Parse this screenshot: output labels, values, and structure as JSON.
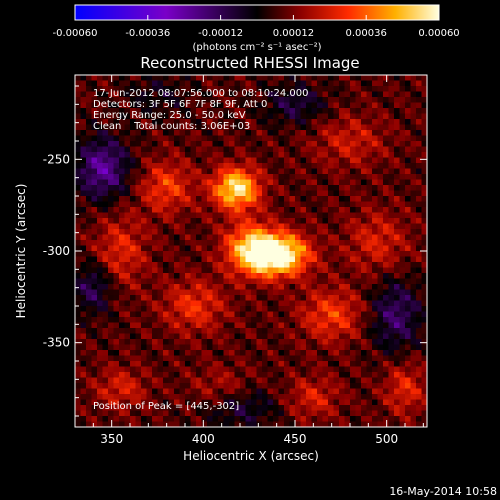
{
  "chart_data": {
    "type": "heatmap",
    "title": "Reconstructed RHESSI Image",
    "xlabel": "Heliocentric X (arcsec)",
    "ylabel": "Heliocentric Y (arcsec)",
    "x_ticks": [
      350,
      400,
      450,
      500
    ],
    "y_ticks": [
      -250,
      -300,
      -350
    ],
    "xlim": [
      330,
      522
    ],
    "ylim": [
      -396,
      -204
    ],
    "colorbar": {
      "ticks": [
        "-0.00060",
        "-0.00036",
        "-0.00012",
        "0.00012",
        "0.00036",
        "0.00060"
      ],
      "range": [
        -0.0006,
        0.0006
      ],
      "unit_label": "(photons cm⁻² s⁻¹ asec⁻²)"
    },
    "info_lines": [
      "17-Jun-2012 08:07:56.000 to 08:10:24.000",
      "Detectors: 3F 5F 6F 7F 8F 9F, Att 0",
      "Energy Range: 25.0 - 50.0 keV",
      "Clean    Total counts: 3.06E+03"
    ],
    "peak_label": "Position of Peak = [445,-302]",
    "peak": {
      "x": 445,
      "y": -302
    },
    "blobs": [
      {
        "x": 418,
        "y": -266,
        "amp": 0.00048,
        "sx": 9,
        "sy": 8
      },
      {
        "x": 440,
        "y": -302,
        "amp": 0.0006,
        "sx": 12,
        "sy": 8
      },
      {
        "x": 425,
        "y": -298,
        "amp": 0.0003,
        "sx": 10,
        "sy": 10
      },
      {
        "x": 380,
        "y": -265,
        "amp": 0.00022,
        "sx": 10,
        "sy": 10
      },
      {
        "x": 395,
        "y": -330,
        "amp": 0.0002,
        "sx": 12,
        "sy": 10
      },
      {
        "x": 470,
        "y": -335,
        "amp": 0.00022,
        "sx": 12,
        "sy": 10
      },
      {
        "x": 355,
        "y": -300,
        "amp": 0.00018,
        "sx": 10,
        "sy": 14
      },
      {
        "x": 495,
        "y": -295,
        "amp": 0.00016,
        "sx": 12,
        "sy": 12
      },
      {
        "x": 480,
        "y": -240,
        "amp": 0.00014,
        "sx": 14,
        "sy": 10
      },
      {
        "x": 355,
        "y": -375,
        "amp": 0.00016,
        "sx": 10,
        "sy": 8
      },
      {
        "x": 460,
        "y": -380,
        "amp": 0.00016,
        "sx": 10,
        "sy": 8
      },
      {
        "x": 510,
        "y": -375,
        "amp": 0.00018,
        "sx": 8,
        "sy": 10
      },
      {
        "x": 410,
        "y": -375,
        "amp": 0.00012,
        "sx": 12,
        "sy": 8
      },
      {
        "x": 345,
        "y": -255,
        "amp": -0.0003,
        "sx": 10,
        "sy": 12
      },
      {
        "x": 340,
        "y": -320,
        "amp": -0.0002,
        "sx": 8,
        "sy": 10
      },
      {
        "x": 450,
        "y": -220,
        "amp": -0.00016,
        "sx": 12,
        "sy": 8
      },
      {
        "x": 505,
        "y": -335,
        "amp": -0.00022,
        "sx": 10,
        "sy": 14
      },
      {
        "x": 420,
        "y": -385,
        "amp": -0.00016,
        "sx": 14,
        "sy": 8
      },
      {
        "x": 375,
        "y": -215,
        "amp": -0.0001,
        "sx": 12,
        "sy": 8
      }
    ]
  },
  "footer_date": "16-May-2014 10:58"
}
